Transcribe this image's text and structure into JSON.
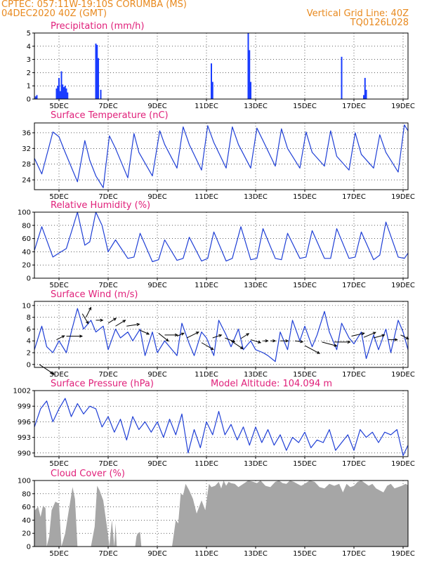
{
  "header": {
    "line1_left": "CPTEC:   057:11W-19:10S   CORUMBA (MS)",
    "line2_left": "04DEC2020 40Z (GMT)",
    "line2_right": "Vertical Grid Line: 40Z",
    "line3_right": "TQ0126L028"
  },
  "colors": {
    "header": "#e8891e",
    "title": "#e0207a",
    "line": "#1f3fd6",
    "bar": "#1a3cff",
    "cloud": "#a6a6a6",
    "arrow": "#000000"
  },
  "x_labels": [
    "5DEC",
    "7DEC",
    "9DEC",
    "11DEC",
    "13DEC",
    "15DEC",
    "17DEC",
    "19DEC"
  ],
  "chart_data": [
    {
      "id": "precip",
      "type": "bar",
      "title": "Precipitation (mm/h)",
      "xlim": [
        0,
        15.2
      ],
      "ylim": [
        0,
        5
      ],
      "yticks": [
        0,
        1,
        2,
        3,
        4,
        5
      ],
      "x": [
        0.05,
        0.1,
        0.9,
        0.95,
        1.0,
        1.05,
        1.1,
        1.15,
        1.2,
        1.25,
        1.3,
        1.35,
        2.5,
        2.55,
        2.6,
        2.7,
        7.2,
        7.25,
        8.7,
        8.75,
        8.8,
        12.5,
        13.4,
        13.45,
        13.5
      ],
      "values": [
        0.2,
        0.3,
        0.8,
        1.0,
        1.6,
        0.6,
        2.1,
        1.1,
        0.9,
        1.0,
        0.8,
        0.5,
        4.2,
        4.1,
        3.1,
        0.7,
        2.7,
        1.3,
        5.0,
        3.7,
        1.3,
        3.2,
        0.3,
        1.6,
        0.7
      ]
    },
    {
      "id": "temp",
      "type": "line",
      "title": "Surface Temperature (nC)",
      "xlim": [
        0,
        15.2
      ],
      "ylim": [
        21.5,
        38.5
      ],
      "yticks": [
        24,
        28,
        32,
        36
      ],
      "x": [
        0,
        0.3,
        0.75,
        1.0,
        1.25,
        1.75,
        2.05,
        2.25,
        2.5,
        2.8,
        3.05,
        3.3,
        3.8,
        4.05,
        4.25,
        4.8,
        5.1,
        5.3,
        5.8,
        6.05,
        6.3,
        6.8,
        7.05,
        7.3,
        7.8,
        8.05,
        8.3,
        8.8,
        9.05,
        9.3,
        9.8,
        10.05,
        10.3,
        10.8,
        11.05,
        11.3,
        11.8,
        12.05,
        12.3,
        12.8,
        13.05,
        13.3,
        13.8,
        14.05,
        14.3,
        14.8,
        15.05,
        15.2
      ],
      "y": [
        29.5,
        25.5,
        36.2,
        35.0,
        31.0,
        23.5,
        34.0,
        29.0,
        25.0,
        22.0,
        35.2,
        32.0,
        24.5,
        35.8,
        31.0,
        25.0,
        36.5,
        33.0,
        27.0,
        37.5,
        33.0,
        26.5,
        37.8,
        33.5,
        27.0,
        37.5,
        33.0,
        27.0,
        37.2,
        34.0,
        27.5,
        37.0,
        32.0,
        27.0,
        36.2,
        31.0,
        27.5,
        36.5,
        30.0,
        26.5,
        36.0,
        30.5,
        27.0,
        35.5,
        31.0,
        26.0,
        38.0,
        36.5
      ]
    },
    {
      "id": "rh",
      "type": "line",
      "title": "Relative Humidity (%)",
      "xlim": [
        0,
        15.2
      ],
      "ylim": [
        0,
        100
      ],
      "yticks": [
        0,
        20,
        40,
        60,
        80,
        100
      ],
      "x": [
        0,
        0.3,
        0.75,
        1.0,
        1.3,
        1.75,
        2.05,
        2.25,
        2.5,
        2.75,
        3.0,
        3.3,
        3.8,
        4.05,
        4.3,
        4.8,
        5.05,
        5.3,
        5.8,
        6.05,
        6.3,
        6.8,
        7.05,
        7.3,
        7.8,
        8.05,
        8.4,
        8.8,
        9.05,
        9.3,
        9.8,
        10.05,
        10.3,
        10.8,
        11.05,
        11.3,
        11.8,
        12.05,
        12.3,
        12.8,
        13.05,
        13.3,
        13.8,
        14.05,
        14.3,
        14.8,
        15.05,
        15.2
      ],
      "y": [
        42,
        78,
        32,
        38,
        45,
        100,
        50,
        55,
        100,
        80,
        40,
        58,
        30,
        32,
        68,
        25,
        28,
        58,
        27,
        30,
        62,
        26,
        30,
        70,
        26,
        30,
        78,
        28,
        30,
        75,
        30,
        28,
        68,
        30,
        32,
        72,
        30,
        30,
        75,
        30,
        32,
        70,
        28,
        35,
        85,
        32,
        30,
        38
      ]
    },
    {
      "id": "wind",
      "type": "line",
      "title": "Surface Wind (m/s)",
      "xlim": [
        0,
        15.2
      ],
      "ylim": [
        -0.5,
        10.7
      ],
      "yticks": [
        0,
        2,
        4,
        6,
        8,
        10
      ],
      "x": [
        0,
        0.3,
        0.5,
        0.75,
        1.0,
        1.3,
        1.5,
        1.75,
        2.0,
        2.3,
        2.5,
        2.8,
        3.0,
        3.3,
        3.5,
        3.8,
        4.0,
        4.3,
        4.5,
        4.8,
        5.0,
        5.3,
        5.5,
        5.8,
        6.0,
        6.3,
        6.5,
        6.8,
        7.0,
        7.3,
        7.5,
        7.8,
        8.0,
        8.3,
        8.5,
        8.8,
        9.0,
        9.3,
        9.5,
        9.8,
        10.0,
        10.3,
        10.5,
        10.8,
        11.0,
        11.3,
        11.5,
        11.8,
        12.0,
        12.3,
        12.5,
        12.8,
        13.0,
        13.3,
        13.5,
        13.8,
        14.0,
        14.3,
        14.5,
        14.8,
        15.0,
        15.2
      ],
      "y": [
        2.5,
        6.5,
        3.0,
        2.0,
        4.0,
        2.0,
        5.5,
        9.5,
        6.0,
        7.5,
        5.5,
        6.5,
        2.5,
        6.0,
        4.5,
        5.5,
        4.0,
        6.0,
        1.5,
        5.5,
        2.0,
        4.0,
        3.0,
        1.5,
        7.0,
        3.5,
        1.5,
        5.5,
        4.5,
        1.5,
        7.5,
        5.0,
        3.0,
        6.0,
        2.5,
        4.0,
        2.5,
        2.0,
        1.5,
        0.5,
        5.5,
        2.5,
        7.5,
        4.0,
        6.5,
        3.0,
        5.0,
        9.0,
        5.5,
        2.5,
        7.0,
        4.5,
        3.5,
        5.5,
        1.0,
        5.0,
        2.5,
        6.0,
        2.0,
        7.5,
        5.5,
        2.5
      ],
      "vectors": [
        [
          0.2,
          1.5,
          0.0,
          -1.0
        ],
        [
          0.9,
          0.8,
          4.2,
          0.4
        ],
        [
          1.3,
          1.6,
          4.8,
          0.0
        ],
        [
          1.95,
          0.6,
          8.6,
          -1.0
        ],
        [
          2.1,
          0.5,
          8.0,
          1.0
        ],
        [
          2.5,
          0.7,
          7.5,
          0.0
        ],
        [
          3.0,
          0.8,
          7.0,
          0.5
        ],
        [
          3.3,
          1.0,
          6.5,
          0.6
        ],
        [
          3.75,
          1.3,
          6.5,
          0.2
        ],
        [
          4.3,
          0.9,
          5.8,
          -0.4
        ],
        [
          5.05,
          1.0,
          5.3,
          -0.8
        ],
        [
          5.3,
          1.3,
          5.0,
          0.0
        ],
        [
          5.8,
          0.7,
          4.8,
          0.3
        ],
        [
          6.2,
          1.2,
          4.5,
          0.6
        ],
        [
          6.8,
          1.2,
          3.7,
          -0.7
        ],
        [
          7.25,
          0.9,
          4.5,
          0.3
        ],
        [
          7.75,
          1.0,
          4.5,
          -0.4
        ],
        [
          8.0,
          1.2,
          4.0,
          -0.8
        ],
        [
          8.4,
          0.8,
          4.4,
          0.5
        ],
        [
          8.8,
          1.0,
          4.2,
          -0.3
        ],
        [
          9.3,
          0.5,
          4.0,
          0.0
        ],
        [
          9.6,
          0.5,
          4.0,
          0.0
        ],
        [
          10.0,
          0.8,
          4.0,
          0.0
        ],
        [
          10.6,
          0.8,
          4.0,
          -0.1
        ],
        [
          11.0,
          1.5,
          3.2,
          -0.8
        ],
        [
          11.7,
          1.5,
          3.8,
          -0.4
        ],
        [
          12.2,
          1.6,
          3.8,
          0.0
        ],
        [
          12.9,
          1.3,
          4.8,
          0.3
        ],
        [
          13.4,
          1.2,
          4.6,
          0.5
        ],
        [
          13.8,
          1.1,
          4.5,
          0.3
        ],
        [
          14.4,
          0.9,
          4.2,
          0.0
        ],
        [
          14.9,
          0.8,
          5.0,
          -0.4
        ]
      ]
    },
    {
      "id": "press",
      "type": "line",
      "title": "Surface Pressure (hPa)",
      "annotation": "Model Altitude: 104.094  m",
      "xlim": [
        0,
        15.2
      ],
      "ylim": [
        989.3,
        1002
      ],
      "yticks": [
        990,
        993,
        996,
        999,
        1002
      ],
      "x": [
        0,
        0.25,
        0.5,
        0.75,
        1.0,
        1.25,
        1.5,
        1.75,
        2.0,
        2.25,
        2.5,
        2.75,
        3.0,
        3.25,
        3.5,
        3.75,
        4.0,
        4.25,
        4.5,
        4.75,
        5.0,
        5.25,
        5.5,
        5.75,
        6.0,
        6.25,
        6.5,
        6.75,
        7.0,
        7.25,
        7.5,
        7.75,
        8.0,
        8.25,
        8.5,
        8.75,
        9.0,
        9.25,
        9.5,
        9.75,
        10.0,
        10.25,
        10.5,
        10.75,
        11.0,
        11.25,
        11.5,
        11.75,
        12.0,
        12.25,
        12.5,
        12.75,
        13.0,
        13.25,
        13.5,
        13.75,
        14.0,
        14.25,
        14.5,
        14.75,
        15.0,
        15.2
      ],
      "y": [
        995.0,
        998.5,
        1000.0,
        996.0,
        998.5,
        1000.5,
        997.0,
        999.5,
        997.5,
        999.0,
        998.5,
        995.0,
        997.0,
        994.0,
        996.5,
        992.5,
        997.0,
        994.5,
        996.0,
        994.0,
        996.0,
        993.0,
        996.5,
        993.5,
        997.5,
        990.0,
        994.5,
        991.0,
        996.0,
        993.5,
        998.0,
        993.5,
        995.5,
        992.5,
        995.0,
        991.5,
        995.0,
        992.0,
        994.5,
        991.5,
        993.5,
        990.5,
        993.0,
        992.0,
        994.0,
        991.0,
        992.5,
        992.0,
        994.5,
        990.5,
        992.0,
        993.5,
        990.5,
        994.5,
        993.0,
        994.0,
        992.0,
        994.0,
        993.5,
        994.5,
        989.5,
        991.5
      ]
    },
    {
      "id": "cloud",
      "type": "area",
      "title": "Cloud Cover (%)",
      "xlim": [
        0,
        15.2
      ],
      "ylim": [
        0,
        100
      ],
      "yticks": [
        0,
        20,
        40,
        60,
        80,
        100
      ],
      "x": [
        0,
        0.02,
        0.15,
        0.25,
        0.35,
        0.45,
        0.5,
        0.6,
        0.7,
        0.85,
        1.0,
        1.1,
        1.25,
        1.4,
        1.55,
        1.65,
        1.75,
        1.85,
        1.95,
        2.05,
        2.15,
        2.3,
        2.45,
        2.55,
        2.65,
        2.8,
        2.95,
        3.05,
        3.15,
        3.25,
        3.3,
        3.35,
        3.4,
        3.45,
        3.5,
        3.6,
        3.8,
        4.1,
        4.15,
        4.2,
        4.3,
        4.35,
        4.4,
        4.6,
        4.9,
        5.1,
        5.3,
        5.35,
        5.5,
        5.6,
        5.75,
        5.85,
        5.95,
        6.05,
        6.15,
        6.3,
        6.45,
        6.6,
        6.8,
        6.95,
        7.1,
        7.2,
        7.35,
        7.5,
        7.6,
        7.7,
        7.8,
        7.9,
        8.0,
        8.15,
        8.3,
        8.5,
        8.7,
        8.9,
        9.05,
        9.2,
        9.4,
        9.6,
        9.8,
        9.95,
        10.1,
        10.25,
        10.4,
        10.55,
        10.7,
        10.85,
        11.0,
        11.2,
        11.4,
        11.6,
        11.8,
        12.0,
        12.2,
        12.4,
        12.55,
        12.7,
        12.85,
        13.0,
        13.15,
        13.3,
        13.45,
        13.6,
        13.75,
        13.9,
        14.05,
        14.2,
        14.35,
        14.5,
        14.65,
        14.8,
        14.95,
        15.1,
        15.2
      ],
      "y": [
        0,
        55,
        60,
        45,
        62,
        58,
        0,
        15,
        55,
        68,
        65,
        0,
        20,
        55,
        90,
        72,
        0,
        0,
        0,
        0,
        0,
        0,
        30,
        92,
        85,
        70,
        30,
        0,
        40,
        0,
        35,
        0,
        0,
        0,
        0,
        0,
        0,
        0,
        15,
        20,
        22,
        0,
        0,
        0,
        0,
        0,
        0,
        0,
        0,
        0,
        40,
        35,
        80,
        78,
        95,
        85,
        72,
        50,
        70,
        55,
        95,
        90,
        92,
        98,
        88,
        100,
        92,
        98,
        96,
        95,
        90,
        95,
        100,
        98,
        96,
        100,
        92,
        90,
        98,
        100,
        96,
        95,
        100,
        98,
        95,
        92,
        95,
        100,
        98,
        90,
        88,
        95,
        92,
        95,
        82,
        95,
        90,
        92,
        98,
        100,
        96,
        92,
        95,
        88,
        85,
        82,
        92,
        95,
        88,
        90,
        92,
        95,
        93
      ]
    }
  ]
}
